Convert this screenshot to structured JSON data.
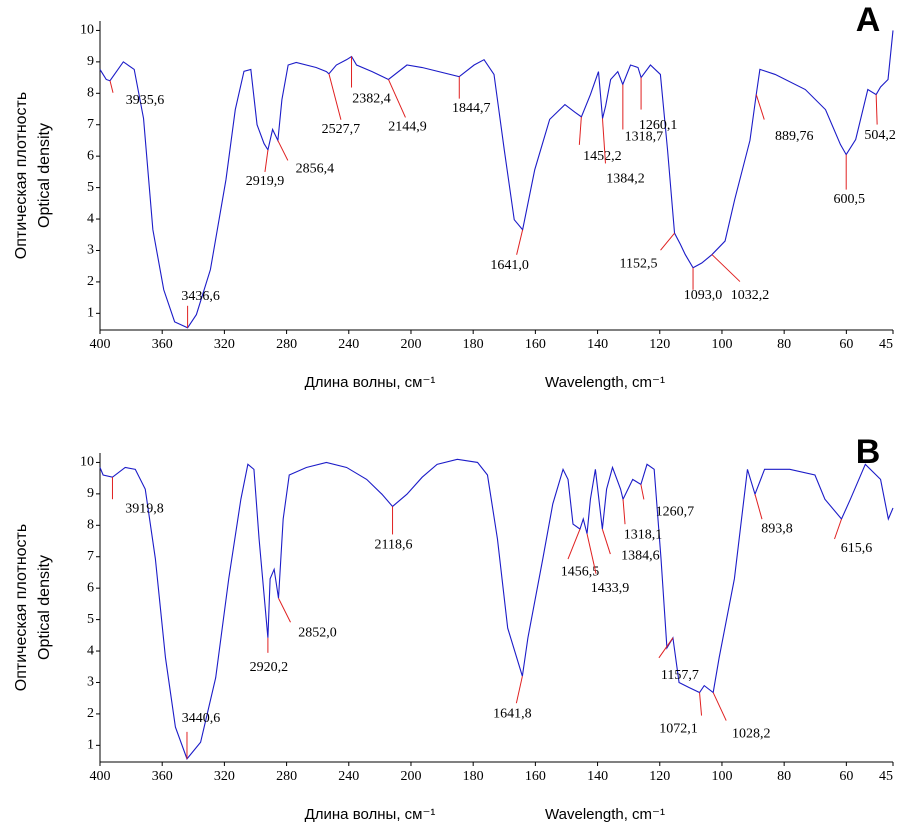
{
  "chart_data": [
    {
      "type": "line",
      "label": "A",
      "xlabel": [
        "Длина волны, см⁻¹",
        "Wavelength, cm⁻¹"
      ],
      "ylabel": [
        "Оптическая плотность",
        "Optical density"
      ],
      "xlim": [
        400,
        45
      ],
      "xticks": [
        400,
        360,
        320,
        280,
        240,
        200,
        180,
        160,
        140,
        120,
        100,
        80,
        60,
        45
      ],
      "ylim": [
        0.47,
        10.3
      ],
      "yticks": [
        1,
        2,
        3,
        4,
        5,
        6,
        7,
        8,
        9,
        10
      ],
      "series": [
        {
          "color": "#1c1cc8",
          "x": [
            400,
            396,
            393.56,
            385,
            378,
            372,
            366,
            359,
            352,
            343.66,
            338,
            329,
            319,
            313,
            307.4,
            303,
            299,
            294.5,
            292,
            289,
            285.6,
            283,
            279,
            273.8,
            261,
            254.4,
            252.8,
            248,
            241.4,
            238.2,
            235,
            225,
            214.5,
            202.6,
            196.4,
            184.5,
            179.7,
            176.5,
            173.3,
            170,
            166.8,
            164.1,
            160.2,
            155.4,
            150.5,
            147.3,
            145.2,
            142.3,
            139.7,
            138.4,
            137.4,
            135.8,
            133.5,
            131.9,
            129.4,
            127,
            126,
            123,
            119.8,
            117.5,
            115.25,
            113.4,
            111.8,
            109.3,
            106.5,
            103.2,
            99,
            95.9,
            91,
            88.976,
            87.8,
            82.9,
            73.2,
            66.7,
            61.9,
            60.05,
            57,
            53.1,
            50.42,
            49,
            46.6,
            45
          ],
          "values": [
            8.76,
            8.44,
            8.4,
            9.0,
            8.76,
            7.2,
            3.66,
            1.75,
            0.73,
            0.54,
            0.96,
            2.39,
            5.25,
            7.48,
            8.7,
            8.76,
            7.0,
            6.4,
            6.2,
            6.85,
            6.5,
            7.8,
            8.9,
            8.98,
            8.82,
            8.69,
            8.62,
            8.9,
            9.07,
            9.17,
            8.9,
            8.69,
            8.44,
            8.9,
            8.82,
            8.53,
            8.9,
            9.07,
            8.6,
            6.2,
            3.98,
            3.66,
            5.57,
            7.17,
            7.64,
            7.4,
            7.25,
            7.96,
            8.69,
            7.2,
            7.6,
            8.44,
            8.69,
            8.28,
            8.9,
            8.82,
            8.5,
            8.9,
            8.6,
            6.2,
            3.55,
            3.2,
            2.87,
            2.45,
            2.6,
            2.87,
            3.3,
            4.62,
            6.5,
            7.96,
            8.76,
            8.6,
            8.12,
            7.48,
            6.37,
            6.05,
            6.53,
            8.12,
            7.96,
            8.2,
            8.44,
            10
          ]
        }
      ],
      "annotations": [
        {
          "text": "3935,6",
          "x": 393.56,
          "y": 8.4
        },
        {
          "text": "3436,6",
          "x": 343.66,
          "y": 0.54
        },
        {
          "text": "2919,9",
          "x": 291.99,
          "y": 6.2
        },
        {
          "text": "2856,4",
          "x": 285.64,
          "y": 6.5
        },
        {
          "text": "2527,7",
          "x": 252.77,
          "y": 8.62
        },
        {
          "text": "2382,4",
          "x": 238.24,
          "y": 9.17
        },
        {
          "text": "2144,9",
          "x": 214.49,
          "y": 8.44
        },
        {
          "text": "1844,7",
          "x": 184.47,
          "y": 8.53
        },
        {
          "text": "1641,0",
          "x": 164.1,
          "y": 3.66
        },
        {
          "text": "1452,2",
          "x": 145.22,
          "y": 7.25
        },
        {
          "text": "1384,2",
          "x": 138.42,
          "y": 7.2
        },
        {
          "text": "1318,7",
          "x": 131.87,
          "y": 8.28
        },
        {
          "text": "1260,1",
          "x": 126.01,
          "y": 8.5
        },
        {
          "text": "1152,5",
          "x": 115.25,
          "y": 3.55
        },
        {
          "text": "1093,0",
          "x": 109.3,
          "y": 2.45
        },
        {
          "text": "1032,2",
          "x": 103.22,
          "y": 2.87
        },
        {
          "text": "889,76",
          "x": 88.976,
          "y": 7.96
        },
        {
          "text": "600,5",
          "x": 60.05,
          "y": 6.05
        },
        {
          "text": "504,2",
          "x": 50.42,
          "y": 7.96
        }
      ]
    },
    {
      "type": "line",
      "label": "B",
      "xlabel": [
        "Длина волны, см⁻¹",
        "Wavelength, cm⁻¹"
      ],
      "ylabel": [
        "Оптическая плотность",
        "Optical density"
      ],
      "xlim": [
        400,
        45
      ],
      "xticks": [
        400,
        360,
        320,
        280,
        240,
        200,
        180,
        160,
        140,
        120,
        100,
        80,
        60,
        45
      ],
      "ylim": [
        0.47,
        10.3
      ],
      "yticks": [
        1,
        2,
        3,
        4,
        5,
        6,
        7,
        8,
        9,
        10
      ],
      "series": [
        {
          "color": "#1c1cc8",
          "x": [
            400,
            398,
            391.98,
            383.8,
            377.3,
            370.9,
            364.4,
            357.9,
            351.5,
            344.06,
            335.3,
            325.6,
            317.2,
            309.4,
            304.9,
            301,
            297.7,
            292.02,
            290.6,
            288,
            285.2,
            282.2,
            278.3,
            267.3,
            254.4,
            241.4,
            228.5,
            218.7,
            211.86,
            202.6,
            196.4,
            191.6,
            185.1,
            178.6,
            175.4,
            172.2,
            168.9,
            164.18,
            162.4,
            157.6,
            154.4,
            151.1,
            149.5,
            147.9,
            145.65,
            144.6,
            143.39,
            142.3,
            140.7,
            138.46,
            137.1,
            135.2,
            132.6,
            131.81,
            128.7,
            126.07,
            124.1,
            121.8,
            119.6,
            117.7,
            115.77,
            113.8,
            110.6,
            107.21,
            105.7,
            102.82,
            100.9,
            96,
            91.8,
            89.38,
            86.3,
            78.2,
            70.1,
            66.9,
            61.56,
            58.7,
            53.9,
            49,
            46.5,
            45
          ],
          "values": [
            9.84,
            9.6,
            9.53,
            9.84,
            9.78,
            9.15,
            6.94,
            3.79,
            1.58,
            0.57,
            1.1,
            3.15,
            6.3,
            8.83,
            9.94,
            9.78,
            7.57,
            4.42,
            6.3,
            6.6,
            5.68,
            8.2,
            9.6,
            9.84,
            10,
            9.84,
            9.46,
            8.99,
            8.6,
            8.99,
            9.53,
            9.94,
            10.1,
            10,
            9.6,
            7.57,
            4.73,
            3.2,
            4.42,
            6.94,
            8.68,
            9.78,
            9.46,
            8.04,
            7.88,
            8.2,
            7.73,
            8.83,
            9.78,
            7.88,
            9.15,
            9.84,
            9.15,
            8.83,
            9.46,
            9.3,
            9.94,
            9.78,
            6.94,
            4.1,
            4.42,
            3.0,
            2.84,
            2.68,
            2.9,
            2.68,
            3.79,
            6.3,
            9.78,
            8.99,
            9.78,
            9.78,
            9.6,
            8.83,
            8.2,
            8.83,
            9.94,
            9.46,
            8.2,
            8.55
          ]
        }
      ],
      "annotations": [
        {
          "text": "3919,8",
          "x": 391.98,
          "y": 9.53
        },
        {
          "text": "3440,6",
          "x": 344.06,
          "y": 0.57
        },
        {
          "text": "2920,2",
          "x": 292.02,
          "y": 4.42
        },
        {
          "text": "2852,0",
          "x": 285.2,
          "y": 5.68
        },
        {
          "text": "2118,6",
          "x": 211.86,
          "y": 8.6
        },
        {
          "text": "1641,8",
          "x": 164.18,
          "y": 3.2
        },
        {
          "text": "1456,5",
          "x": 145.65,
          "y": 7.88
        },
        {
          "text": "1433,9",
          "x": 143.39,
          "y": 7.73
        },
        {
          "text": "1384,6",
          "x": 138.46,
          "y": 7.88
        },
        {
          "text": "1318,1",
          "x": 131.81,
          "y": 8.83
        },
        {
          "text": "1260,7",
          "x": 126.07,
          "y": 9.3
        },
        {
          "text": "1157,7",
          "x": 115.77,
          "y": 4.42
        },
        {
          "text": "1072,1",
          "x": 107.21,
          "y": 2.68
        },
        {
          "text": "1028,2",
          "x": 102.82,
          "y": 2.68
        },
        {
          "text": "893,8",
          "x": 89.38,
          "y": 8.99
        },
        {
          "text": "615,6",
          "x": 61.56,
          "y": 8.2
        }
      ]
    }
  ]
}
